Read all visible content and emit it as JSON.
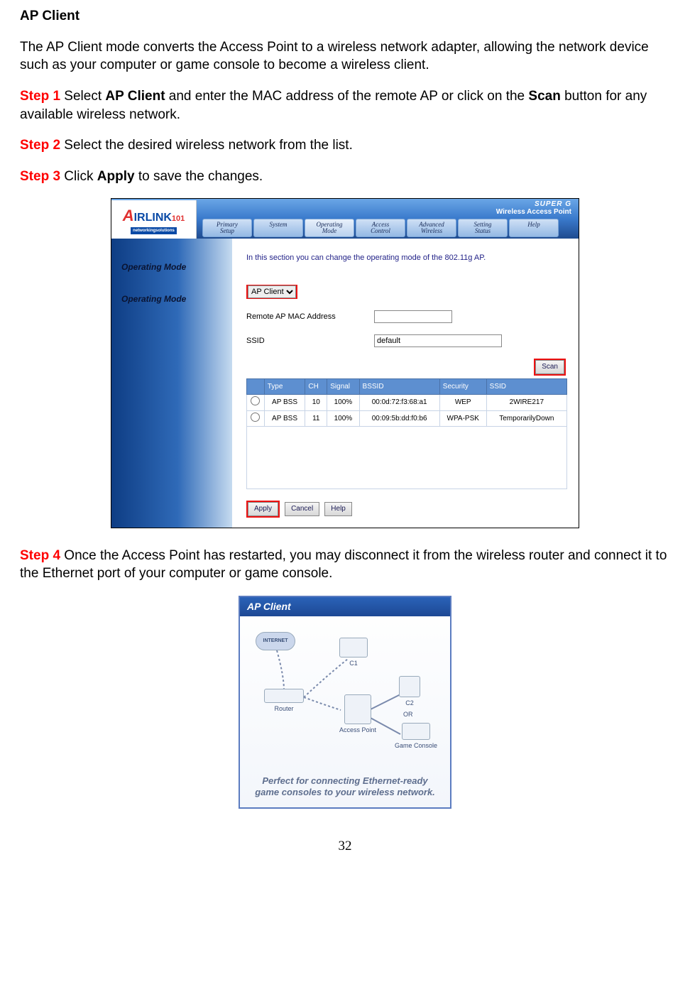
{
  "heading": "AP Client",
  "intro": "The AP Client mode converts the Access Point to a wireless network adapter, allowing the network device such as your computer or game console to become a wireless client.",
  "steps": {
    "s1": {
      "label": "Step 1",
      "pre": " Select ",
      "bold1": "AP Client",
      "mid": " and enter the MAC address of the remote AP or click on the ",
      "bold2": "Scan",
      "post": " button for any available wireless network."
    },
    "s2": {
      "label": "Step 2",
      "text": " Select the desired wireless network from the list."
    },
    "s3": {
      "label": "Step 3",
      "pre": " Click ",
      "bold": "Apply",
      "post": " to save the changes."
    },
    "s4": {
      "label": "Step 4",
      "text": " Once the Access Point has restarted, you may disconnect it from the wireless router and connect it to the Ethernet port of your computer or game console."
    }
  },
  "ap_ui": {
    "logo": {
      "brand": "IRLINK",
      "brand_prefix": "A",
      "brand_suffix": "101",
      "subtitle": "networkingsolutions"
    },
    "super_g": "SUPER G",
    "tagline": "Wireless Access Point",
    "tabs": [
      "Primary\nSetup",
      "System",
      "Operating\nMode",
      "Access\nControl",
      "Advanced\nWireless",
      "Setting\nStatus",
      "Help"
    ],
    "active_tab_index": 2,
    "side_labels": [
      "Operating Mode",
      "Operating Mode"
    ],
    "intro_text": "In this section you can change the operating mode of the 802.11g AP.",
    "mode_select_label": "AP Client",
    "fields": {
      "remote_mac": {
        "label": "Remote AP MAC Address",
        "value": ""
      },
      "ssid": {
        "label": "SSID",
        "value": "default"
      }
    },
    "scan_button": "Scan",
    "table": {
      "columns": [
        "",
        "Type",
        "CH",
        "Signal",
        "BSSID",
        "Security",
        "SSID"
      ],
      "col_widths": [
        "24px",
        "56px",
        "30px",
        "44px",
        "110px",
        "64px",
        "110px"
      ],
      "rows": [
        [
          "",
          "AP BSS",
          "10",
          "100%",
          "00:0d:72:f3:68:a1",
          "WEP",
          "2WIRE217"
        ],
        [
          "",
          "AP BSS",
          "11",
          "100%",
          "00:09:5b:dd:f0:b6",
          "WPA-PSK",
          "TemporarilyDown"
        ]
      ]
    },
    "buttons": {
      "apply": "Apply",
      "cancel": "Cancel",
      "help": "Help"
    }
  },
  "diagram": {
    "title": "AP Client",
    "internet": "INTERNET",
    "router": "Router",
    "ap": "Access Point",
    "c1": "C1",
    "c2": "C2",
    "or": "OR",
    "console": "Game Console",
    "caption": "Perfect for connecting Ethernet-ready game consoles to your wireless network."
  },
  "page_number": "32",
  "colors": {
    "step_red": "#ff0000",
    "highlight_red": "#ee1111",
    "header_grad_top": "#6aa6e6",
    "header_grad_bottom": "#1f4b8f",
    "th_bg": "#5d8fd0"
  }
}
